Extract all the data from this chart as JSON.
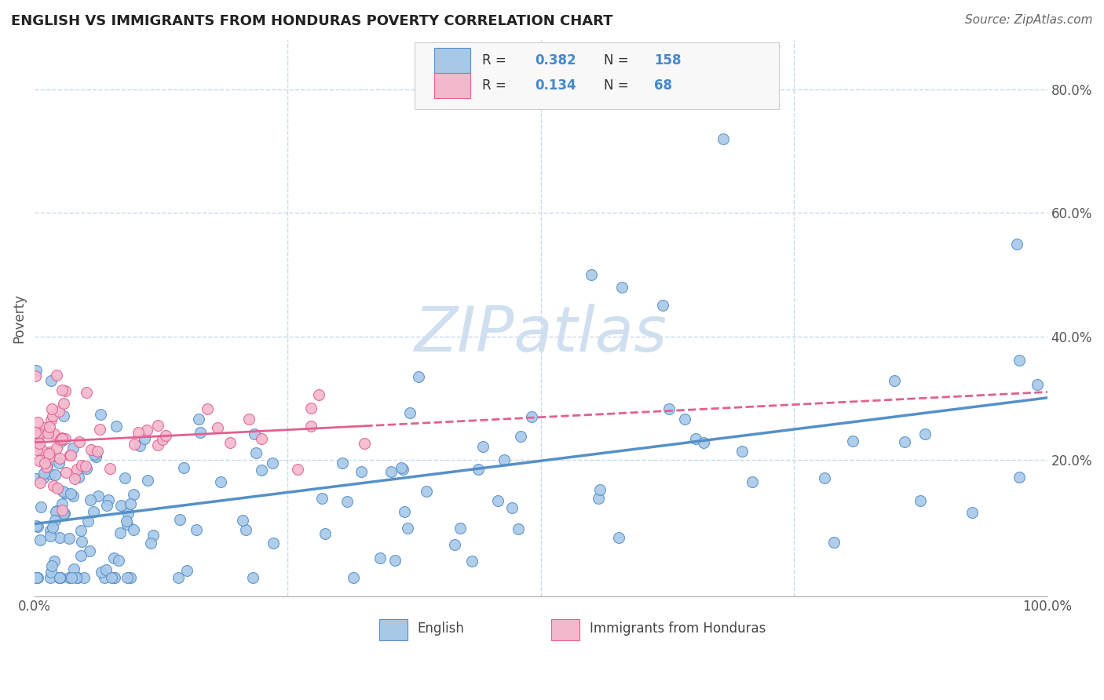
{
  "title": "ENGLISH VS IMMIGRANTS FROM HONDURAS POVERTY CORRELATION CHART",
  "source_text": "Source: ZipAtlas.com",
  "ylabel": "Poverty",
  "xlim": [
    0.0,
    1.0
  ],
  "ylim": [
    -0.02,
    0.88
  ],
  "y_tick_labels": [
    "20.0%",
    "40.0%",
    "60.0%",
    "80.0%"
  ],
  "y_ticks": [
    0.2,
    0.4,
    0.6,
    0.8
  ],
  "english_color": "#a8c8e8",
  "english_edge_color": "#5590c8",
  "honduras_color": "#f4b8cc",
  "honduras_edge_color": "#e06090",
  "english_R": 0.382,
  "english_N": 158,
  "honduras_R": 0.134,
  "honduras_N": 68,
  "legend_value_color": "#4488cc",
  "background_color": "#ffffff",
  "grid_color": "#c8d8ec",
  "watermark_color": "#d0dff0",
  "title_fontsize": 13,
  "axis_fontsize": 12
}
